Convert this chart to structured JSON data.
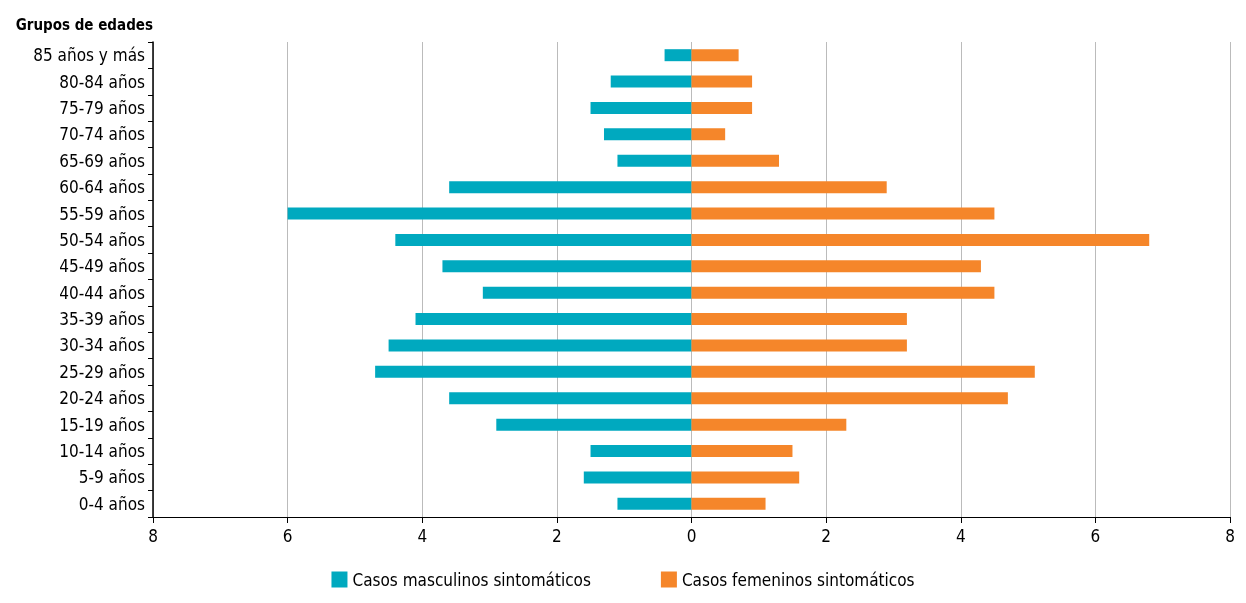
{
  "chart_data": {
    "type": "bar",
    "orientation": "horizontal",
    "ylabel": "Grupos de edades",
    "categories": [
      "85 años y más",
      "80-84 años",
      "75-79 años",
      "70-74 años",
      "65-69 años",
      "60-64 años",
      "55-59 años",
      "50-54 años",
      "45-49 años",
      "40-44 años",
      "35-39 años",
      "30-34 años",
      "25-29 años",
      "20-24 años",
      "15-19 años",
      "10-14 años",
      "5-9 años",
      "0-4 años"
    ],
    "series": [
      {
        "name": "Casos masculinos sintomáticos",
        "color": "#00a9bf",
        "values": [
          -0.4,
          -1.2,
          -1.5,
          -1.3,
          -1.1,
          -3.6,
          -6.0,
          -4.4,
          -3.7,
          -3.1,
          -4.1,
          -4.5,
          -4.7,
          -3.6,
          -2.9,
          -1.5,
          -1.6,
          -1.1
        ]
      },
      {
        "name": "Casos femeninos sintomáticos",
        "color": "#f5862a",
        "values": [
          0.7,
          0.9,
          0.9,
          0.5,
          1.3,
          2.9,
          4.5,
          6.8,
          4.3,
          4.5,
          3.2,
          3.2,
          5.1,
          4.7,
          2.3,
          1.5,
          1.6,
          1.1
        ]
      }
    ],
    "xlim": [
      -8,
      8
    ],
    "xticks": [
      {
        "value": -8,
        "label": "8"
      },
      {
        "value": -6,
        "label": "6"
      },
      {
        "value": -4,
        "label": "4"
      },
      {
        "value": -2,
        "label": "2"
      },
      0,
      2,
      4,
      6,
      8
    ],
    "grid": "x",
    "legend": "bottom",
    "stacked": true
  }
}
